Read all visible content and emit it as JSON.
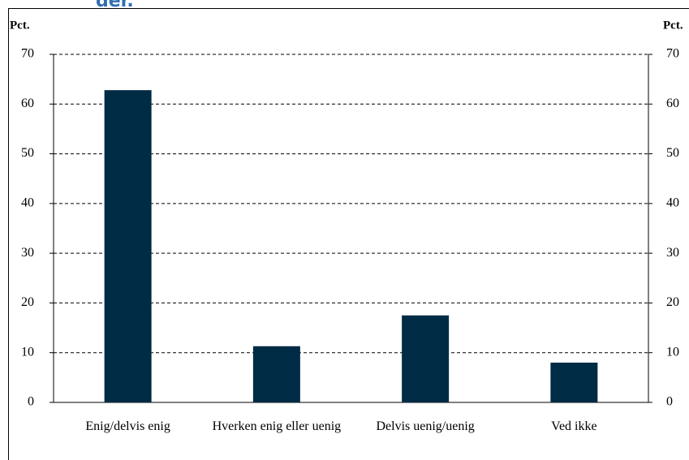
{
  "chart_data": {
    "type": "bar",
    "title": "der.",
    "ylabel": "Pct.",
    "y2label": "Pct.",
    "categories": [
      "Enig/delvis enig",
      "Hverken enig eller uenig",
      "Delvis uenig/uenig",
      "Ved ikke"
    ],
    "values": [
      62.8,
      11.3,
      17.5,
      8.0
    ],
    "color": "#002b45",
    "ylim": [
      0,
      70
    ],
    "yticks": [
      0,
      10,
      20,
      30,
      40,
      50,
      60,
      70
    ],
    "y2lim": [
      0,
      70
    ],
    "y2ticks": [
      0,
      10,
      20,
      30,
      40,
      50,
      60,
      70
    ],
    "grid": true
  }
}
